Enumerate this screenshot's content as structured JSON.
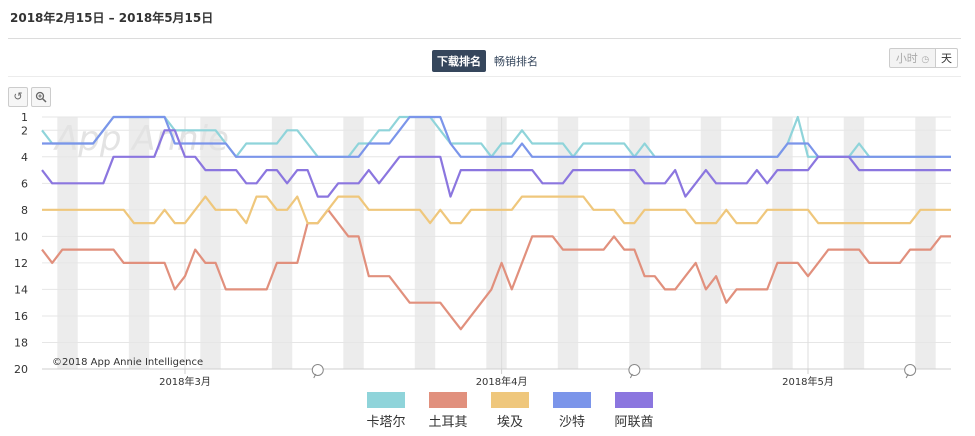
{
  "header": {
    "date_range": "2018年2月15日 – 2018年5月15日"
  },
  "ranking_toggle": {
    "active": "下载排名",
    "inactive": "畅销排名"
  },
  "granularity": {
    "hour": "小时",
    "day": "天"
  },
  "toolbar": {
    "reset_icon": "undo-icon",
    "zoom_icon": "zoom-icon"
  },
  "chart_data": {
    "type": "line",
    "title": "",
    "watermark": "App Annie",
    "copyright": "©2018 App Annie Intelligence",
    "xlabel": "",
    "ylabel": "",
    "y_inverted": true,
    "ylim": [
      1,
      20
    ],
    "y_ticks": [
      1,
      2,
      4,
      6,
      8,
      10,
      12,
      14,
      16,
      18,
      20
    ],
    "x_tick_labels": [
      {
        "label": "2018年3月",
        "day": 14
      },
      {
        "label": "2018年4月",
        "day": 45
      },
      {
        "label": "2018年5月",
        "day": 75
      }
    ],
    "weekend_day_indices": [
      2,
      3,
      9,
      10,
      16,
      17,
      23,
      24,
      30,
      31,
      37,
      38,
      44,
      45,
      51,
      52,
      58,
      59,
      65,
      66,
      72,
      73,
      79,
      80,
      86,
      87
    ],
    "annotation_day_indices": [
      27,
      58,
      85
    ],
    "categories_note": "daily points, day 0 = 2018-02-15 … day 89 = 2018-05-15",
    "series": [
      {
        "name": "卡塔尔",
        "color": "#8fd4da",
        "values": [
          2,
          3,
          3,
          3,
          3,
          3,
          2,
          1,
          1,
          1,
          1,
          1,
          1,
          2,
          2,
          2,
          2,
          2,
          3,
          4,
          3,
          3,
          3,
          3,
          2,
          2,
          3,
          4,
          4,
          4,
          4,
          3,
          3,
          2,
          2,
          1,
          1,
          1,
          1,
          2,
          3,
          3,
          3,
          3,
          4,
          3,
          3,
          2,
          3,
          3,
          3,
          3,
          4,
          3,
          3,
          3,
          3,
          3,
          4,
          3,
          4,
          4,
          4,
          4,
          4,
          4,
          4,
          4,
          4,
          4,
          4,
          4,
          4,
          3,
          1,
          4,
          4,
          4,
          4,
          4,
          3,
          4,
          4,
          4,
          4,
          4,
          4,
          4,
          4,
          4
        ]
      },
      {
        "name": "土耳其",
        "color": "#e1907d",
        "values": [
          11,
          12,
          11,
          11,
          11,
          11,
          11,
          11,
          12,
          12,
          12,
          12,
          12,
          14,
          13,
          11,
          12,
          12,
          14,
          14,
          14,
          14,
          14,
          12,
          12,
          12,
          9,
          9,
          8,
          9,
          10,
          10,
          13,
          13,
          13,
          14,
          15,
          15,
          15,
          15,
          16,
          17,
          16,
          15,
          14,
          12,
          14,
          12,
          10,
          10,
          10,
          11,
          11,
          11,
          11,
          11,
          10,
          11,
          11,
          13,
          13,
          14,
          14,
          13,
          12,
          14,
          13,
          15,
          14,
          14,
          14,
          14,
          12,
          12,
          12,
          13,
          12,
          11,
          11,
          11,
          11,
          12,
          12,
          12,
          12,
          11,
          11,
          11,
          10,
          10
        ]
      },
      {
        "name": "埃及",
        "color": "#efc77c",
        "values": [
          8,
          8,
          8,
          8,
          8,
          8,
          8,
          8,
          8,
          9,
          9,
          9,
          8,
          9,
          9,
          8,
          7,
          8,
          8,
          8,
          9,
          7,
          7,
          8,
          8,
          7,
          9,
          9,
          8,
          7,
          7,
          7,
          8,
          8,
          8,
          8,
          8,
          8,
          9,
          8,
          9,
          9,
          8,
          8,
          8,
          8,
          8,
          7,
          7,
          7,
          7,
          7,
          7,
          7,
          8,
          8,
          8,
          9,
          9,
          8,
          8,
          8,
          8,
          8,
          9,
          9,
          9,
          8,
          9,
          9,
          9,
          8,
          8,
          8,
          8,
          8,
          9,
          9,
          9,
          9,
          9,
          9,
          9,
          9,
          9,
          9,
          8,
          8,
          8,
          8
        ]
      },
      {
        "name": "沙特",
        "color": "#7b95ea",
        "values": [
          3,
          3,
          3,
          3,
          3,
          3,
          2,
          1,
          1,
          1,
          1,
          1,
          1,
          3,
          3,
          3,
          3,
          3,
          3,
          4,
          4,
          4,
          4,
          4,
          4,
          4,
          4,
          4,
          4,
          4,
          4,
          4,
          3,
          3,
          3,
          2,
          1,
          1,
          1,
          1,
          3,
          4,
          4,
          4,
          4,
          4,
          4,
          3,
          4,
          4,
          4,
          4,
          4,
          4,
          4,
          4,
          4,
          4,
          4,
          4,
          4,
          4,
          4,
          4,
          4,
          4,
          4,
          4,
          4,
          4,
          4,
          4,
          4,
          3,
          3,
          3,
          4,
          4,
          4,
          4,
          4,
          4,
          4,
          4,
          4,
          4,
          4,
          4,
          4,
          4
        ]
      },
      {
        "name": "阿联酋",
        "color": "#8b76df",
        "values": [
          5,
          6,
          6,
          6,
          6,
          6,
          6,
          4,
          4,
          4,
          4,
          4,
          2,
          2,
          4,
          4,
          5,
          5,
          5,
          5,
          6,
          6,
          5,
          5,
          6,
          5,
          5,
          7,
          7,
          6,
          6,
          6,
          5,
          6,
          5,
          4,
          4,
          4,
          4,
          4,
          7,
          5,
          5,
          5,
          5,
          5,
          5,
          5,
          5,
          6,
          6,
          6,
          5,
          5,
          5,
          5,
          5,
          5,
          5,
          6,
          6,
          6,
          5,
          7,
          6,
          5,
          6,
          6,
          6,
          6,
          5,
          6,
          5,
          5,
          5,
          5,
          4,
          4,
          4,
          4,
          5,
          5,
          5,
          5,
          5,
          5,
          5,
          5,
          5,
          5
        ]
      }
    ]
  }
}
